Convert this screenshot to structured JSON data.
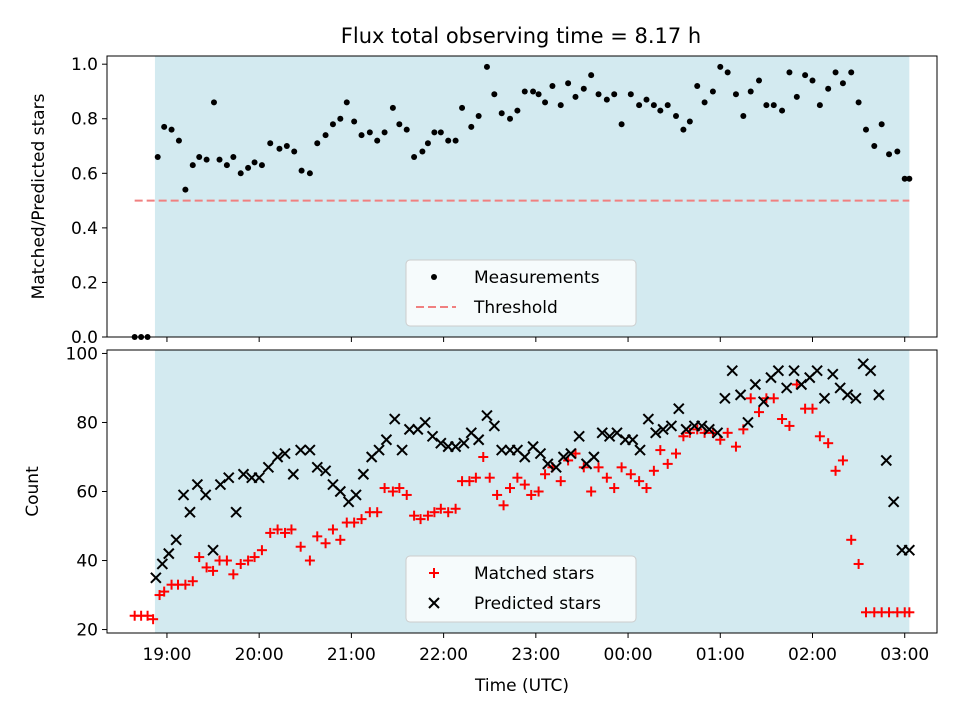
{
  "chart_data": {
    "type": "scatter",
    "title": "Flux total observing time = 8.17 h",
    "xlabel": "Time (UTC)",
    "x_ticks": [
      "19:00",
      "20:00",
      "21:00",
      "22:00",
      "23:00",
      "00:00",
      "01:00",
      "02:00",
      "03:00"
    ],
    "x_tick_hours": [
      19,
      20,
      21,
      22,
      23,
      24,
      25,
      26,
      27
    ],
    "xlim": [
      18.35,
      27.35
    ],
    "observing_window_hours": [
      18.87,
      27.05
    ],
    "shade_color": "#d3eaf0",
    "panels": [
      {
        "ylabel": "Matched/Predicted stars",
        "ylim": [
          0,
          1.03
        ],
        "y_ticks": [
          "0.0",
          "0.2",
          "0.4",
          "0.6",
          "0.8",
          "1.0"
        ],
        "y_tick_values": [
          0,
          0.2,
          0.4,
          0.6,
          0.8,
          1.0
        ],
        "legend_position": "lower center",
        "threshold": {
          "name": "Threshold",
          "value": 0.5,
          "x_range": [
            18.65,
            27.05
          ],
          "color": "#f08080"
        },
        "series": [
          {
            "name": "Measurements",
            "marker": "dot",
            "color": "#000000",
            "x": [
              18.65,
              18.72,
              18.79,
              18.9,
              18.97,
              19.05,
              19.13,
              19.2,
              19.28,
              19.35,
              19.43,
              19.51,
              19.57,
              19.65,
              19.72,
              19.8,
              19.88,
              19.95,
              20.03,
              20.12,
              20.22,
              20.3,
              20.38,
              20.46,
              20.55,
              20.63,
              20.72,
              20.8,
              20.88,
              20.95,
              21.03,
              21.11,
              21.2,
              21.28,
              21.36,
              21.45,
              21.52,
              21.6,
              21.68,
              21.77,
              21.83,
              21.9,
              21.97,
              22.05,
              22.13,
              22.2,
              22.3,
              22.38,
              22.47,
              22.55,
              22.63,
              22.72,
              22.8,
              22.88,
              22.97,
              23.03,
              23.1,
              23.18,
              23.27,
              23.35,
              23.43,
              23.52,
              23.6,
              23.68,
              23.77,
              23.85,
              23.93,
              24.03,
              24.12,
              24.2,
              24.28,
              24.35,
              24.43,
              24.52,
              24.6,
              24.67,
              24.75,
              24.83,
              24.92,
              25.0,
              25.08,
              25.17,
              25.25,
              25.33,
              25.42,
              25.5,
              25.58,
              25.67,
              25.75,
              25.83,
              25.92,
              26.0,
              26.08,
              26.17,
              26.25,
              26.33,
              26.42,
              26.5,
              26.58,
              26.67,
              26.75,
              26.83,
              26.92,
              27.0,
              27.05
            ],
            "y": [
              0.0,
              0.0,
              0.0,
              0.66,
              0.77,
              0.76,
              0.72,
              0.54,
              0.63,
              0.66,
              0.65,
              0.86,
              0.65,
              0.63,
              0.66,
              0.6,
              0.62,
              0.64,
              0.63,
              0.71,
              0.69,
              0.7,
              0.68,
              0.61,
              0.6,
              0.71,
              0.74,
              0.78,
              0.8,
              0.86,
              0.79,
              0.74,
              0.75,
              0.72,
              0.75,
              0.84,
              0.78,
              0.76,
              0.66,
              0.68,
              0.71,
              0.75,
              0.75,
              0.72,
              0.72,
              0.84,
              0.77,
              0.81,
              0.99,
              0.89,
              0.82,
              0.8,
              0.83,
              0.9,
              0.9,
              0.89,
              0.86,
              0.92,
              0.85,
              0.93,
              0.88,
              0.91,
              0.96,
              0.89,
              0.87,
              0.89,
              0.78,
              0.89,
              0.85,
              0.87,
              0.85,
              0.83,
              0.85,
              0.81,
              0.76,
              0.79,
              0.92,
              0.86,
              0.9,
              0.99,
              0.97,
              0.89,
              0.81,
              0.9,
              0.94,
              0.85,
              0.85,
              0.83,
              0.97,
              0.88,
              0.96,
              0.94,
              0.85,
              0.91,
              0.97,
              0.93,
              0.97,
              0.86,
              0.76,
              0.7,
              0.78,
              0.67,
              0.68,
              0.58,
              0.58
            ]
          }
        ]
      },
      {
        "ylabel": "Count",
        "ylim": [
          19,
          101
        ],
        "y_ticks": [
          "20",
          "40",
          "60",
          "80",
          "100"
        ],
        "y_tick_values": [
          20,
          40,
          60,
          80,
          100
        ],
        "legend_position": "lower center",
        "series": [
          {
            "name": "Matched stars",
            "marker": "plus",
            "color": "#ff0000",
            "x": [
              18.65,
              18.72,
              18.79,
              18.85,
              18.92,
              18.97,
              19.05,
              19.12,
              19.2,
              19.28,
              19.35,
              19.43,
              19.5,
              19.57,
              19.65,
              19.72,
              19.8,
              19.88,
              19.95,
              20.03,
              20.12,
              20.2,
              20.28,
              20.35,
              20.45,
              20.55,
              20.63,
              20.72,
              20.8,
              20.88,
              20.95,
              21.03,
              21.11,
              21.2,
              21.28,
              21.36,
              21.45,
              21.52,
              21.6,
              21.68,
              21.75,
              21.83,
              21.9,
              21.97,
              22.05,
              22.13,
              22.2,
              22.28,
              22.35,
              22.43,
              22.5,
              22.58,
              22.65,
              22.72,
              22.8,
              22.88,
              22.95,
              23.03,
              23.1,
              23.18,
              23.27,
              23.35,
              23.43,
              23.52,
              23.6,
              23.68,
              23.77,
              23.85,
              23.93,
              24.03,
              24.12,
              24.2,
              24.28,
              24.35,
              24.43,
              24.52,
              24.6,
              24.67,
              24.75,
              24.83,
              24.92,
              25.0,
              25.08,
              25.17,
              25.25,
              25.33,
              25.42,
              25.5,
              25.58,
              25.67,
              25.75,
              25.83,
              25.92,
              26.0,
              26.08,
              26.17,
              26.25,
              26.33,
              26.42,
              26.5,
              26.58,
              26.67,
              26.75,
              26.83,
              26.92,
              27.0,
              27.05
            ],
            "y": [
              24,
              24,
              24,
              23,
              30,
              31,
              33,
              33,
              33,
              34,
              41,
              38,
              37,
              40,
              40,
              36,
              39,
              40,
              41,
              43,
              48,
              49,
              48,
              49,
              44,
              40,
              47,
              45,
              49,
              46,
              51,
              51,
              52,
              54,
              54,
              61,
              60,
              61,
              59,
              53,
              52,
              53,
              54,
              55,
              54,
              55,
              63,
              63,
              64,
              70,
              64,
              59,
              56,
              61,
              64,
              62,
              59,
              60,
              65,
              67,
              63,
              69,
              71,
              67,
              60,
              67,
              64,
              61,
              67,
              65,
              63,
              61,
              66,
              72,
              68,
              71,
              76,
              77,
              78,
              77,
              77,
              75,
              77,
              73,
              78,
              87,
              83,
              87,
              87,
              81,
              79,
              91,
              84,
              84,
              76,
              74,
              66,
              69,
              46,
              39,
              25,
              25,
              25,
              25,
              25,
              25,
              25
            ],
            "x_note": ""
          },
          {
            "name": "Predicted stars",
            "marker": "x",
            "color": "#000000",
            "x": [
              18.88,
              18.95,
              19.02,
              19.1,
              19.18,
              19.25,
              19.33,
              19.42,
              19.5,
              19.58,
              19.67,
              19.75,
              19.83,
              19.92,
              20.0,
              20.1,
              20.2,
              20.28,
              20.37,
              20.45,
              20.55,
              20.63,
              20.72,
              20.8,
              20.88,
              20.97,
              21.05,
              21.13,
              21.22,
              21.3,
              21.38,
              21.47,
              21.55,
              21.63,
              21.72,
              21.8,
              21.88,
              21.97,
              22.05,
              22.13,
              22.22,
              22.3,
              22.38,
              22.47,
              22.55,
              22.63,
              22.72,
              22.8,
              22.88,
              22.97,
              23.05,
              23.13,
              23.22,
              23.3,
              23.38,
              23.47,
              23.55,
              23.63,
              23.72,
              23.8,
              23.88,
              23.97,
              24.05,
              24.13,
              24.22,
              24.3,
              24.38,
              24.47,
              24.55,
              24.63,
              24.72,
              24.8,
              24.88,
              24.97,
              25.05,
              25.13,
              25.22,
              25.3,
              25.38,
              25.47,
              25.55,
              25.63,
              25.72,
              25.8,
              25.88,
              25.97,
              26.05,
              26.13,
              26.22,
              26.3,
              26.38,
              26.47,
              26.55,
              26.63,
              26.72,
              26.8,
              26.88,
              26.97,
              27.05
            ],
            "y": [
              35,
              39,
              42,
              46,
              59,
              54,
              62,
              59,
              43,
              62,
              64,
              54,
              65,
              64,
              64,
              67,
              70,
              71,
              65,
              72,
              72,
              67,
              66,
              62,
              60,
              57,
              59,
              65,
              70,
              72,
              75,
              81,
              72,
              78,
              78,
              80,
              76,
              74,
              73,
              73,
              74,
              77,
              75,
              82,
              79,
              72,
              72,
              72,
              70,
              73,
              71,
              68,
              67,
              70,
              71,
              76,
              68,
              70,
              77,
              76,
              77,
              75,
              75,
              72,
              81,
              77,
              78,
              79,
              84,
              78,
              79,
              79,
              78,
              77,
              87,
              95,
              88,
              80,
              91,
              86,
              93,
              95,
              90,
              95,
              91,
              93,
              95,
              87,
              94,
              90,
              88,
              87,
              97,
              95,
              88,
              69,
              57,
              43,
              43
            ]
          }
        ]
      }
    ]
  }
}
